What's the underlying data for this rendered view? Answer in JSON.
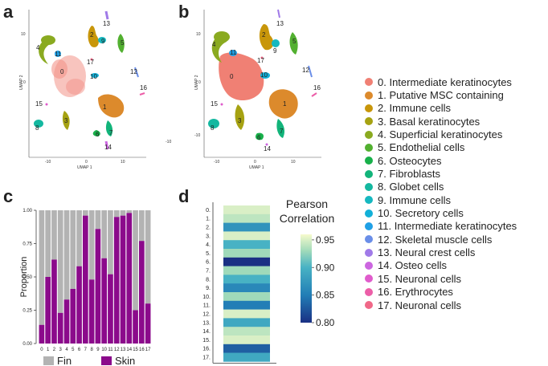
{
  "panels": {
    "a": "a",
    "b": "b",
    "c": "c",
    "d": "d"
  },
  "umap": {
    "xlabel": "UMAP 1",
    "ylabel": "UMAP 2",
    "xticks": [
      "-10",
      "0",
      "10"
    ],
    "yticks": [
      "10",
      "0",
      "-10"
    ],
    "a_cluster_numbers": [
      "0",
      "1",
      "2",
      "3",
      "4",
      "5",
      "6",
      "7",
      "8",
      "9",
      "10",
      "11",
      "12",
      "13",
      "14",
      "15",
      "16",
      "17"
    ],
    "b_cluster_numbers": [
      "0",
      "1",
      "2",
      "3",
      "4",
      "5",
      "6",
      "7",
      "8",
      "9",
      "10",
      "11",
      "12",
      "13",
      "14",
      "15",
      "16",
      "17"
    ]
  },
  "legend": {
    "items": [
      {
        "label": "0. Intermediate keratinocytes",
        "color": "#f08074"
      },
      {
        "label": "1. Putative MSC containing",
        "color": "#dc8a2c"
      },
      {
        "label": "2. Immune cells",
        "color": "#c8960a"
      },
      {
        "label": "3. Basal keratinocytes",
        "color": "#a6a212"
      },
      {
        "label": "4. Superficial keratinocytes",
        "color": "#8aaa20"
      },
      {
        "label": "5. Endothelial cells",
        "color": "#52b030"
      },
      {
        "label": "6. Osteocytes",
        "color": "#18b04a"
      },
      {
        "label": "7. Fibroblasts",
        "color": "#12b47a"
      },
      {
        "label": "8. Globet cells",
        "color": "#14b8a0"
      },
      {
        "label": "9. Immune cells",
        "color": "#16b8c0"
      },
      {
        "label": "10. Secretory cells",
        "color": "#12b0d8"
      },
      {
        "label": "11. Intermediate keratinocytes",
        "color": "#20a0e6"
      },
      {
        "label": "12. Skeletal muscle cells",
        "color": "#6a8ee8"
      },
      {
        "label": "13. Neural crest cells",
        "color": "#a07ae8"
      },
      {
        "label": "14. Osteo cells",
        "color": "#cc66e0"
      },
      {
        "label": "15. Neuronal cells",
        "color": "#e05ccc"
      },
      {
        "label": "16. Erythrocytes",
        "color": "#ec5ea8"
      },
      {
        "label": "17. Neuronal cells",
        "color": "#f06888"
      }
    ]
  },
  "chart_data": [
    {
      "type": "bar",
      "stacked": true,
      "categories": [
        "0",
        "1",
        "2",
        "3",
        "4",
        "5",
        "6",
        "7",
        "8",
        "9",
        "10",
        "11",
        "12",
        "13",
        "14",
        "15",
        "16",
        "17"
      ],
      "series": [
        {
          "name": "Skin",
          "color": "#8b0a8b",
          "values": [
            0.14,
            0.5,
            0.63,
            0.23,
            0.33,
            0.41,
            0.58,
            0.96,
            0.48,
            0.86,
            0.64,
            0.52,
            0.95,
            0.96,
            0.98,
            0.25,
            0.77,
            0.3
          ]
        },
        {
          "name": "Fin",
          "color": "#b3b3b3",
          "values": [
            0.86,
            0.5,
            0.37,
            0.77,
            0.67,
            0.59,
            0.42,
            0.04,
            0.52,
            0.14,
            0.36,
            0.48,
            0.05,
            0.04,
            0.02,
            0.75,
            0.23,
            0.7
          ]
        }
      ],
      "ylabel": "Proportion",
      "ylim": [
        0,
        1
      ],
      "yticks": [
        "0.00",
        "0.25",
        "0.50",
        "0.75",
        "1.00"
      ],
      "legend": [
        {
          "label": "Fin",
          "color": "#b3b3b3"
        },
        {
          "label": "Skin",
          "color": "#8b0a8b"
        }
      ]
    },
    {
      "type": "heatmap",
      "rows": [
        "0.",
        "1.",
        "2.",
        "3.",
        "4.",
        "5.",
        "6.",
        "7.",
        "8.",
        "9.",
        "10.",
        "11.",
        "12.",
        "13.",
        "14.",
        "15.",
        "16.",
        "17."
      ],
      "values": [
        0.95,
        0.94,
        0.87,
        0.95,
        0.9,
        0.93,
        0.8,
        0.93,
        0.9,
        0.86,
        0.93,
        0.85,
        0.95,
        0.89,
        0.94,
        0.95,
        0.83,
        0.89
      ],
      "colorbar": {
        "title_line1": "Pearson",
        "title_line2": "Correlation",
        "min": 0.8,
        "max": 0.96,
        "ticks": [
          "0.95",
          "0.90",
          "0.85",
          "0.80"
        ]
      }
    }
  ]
}
